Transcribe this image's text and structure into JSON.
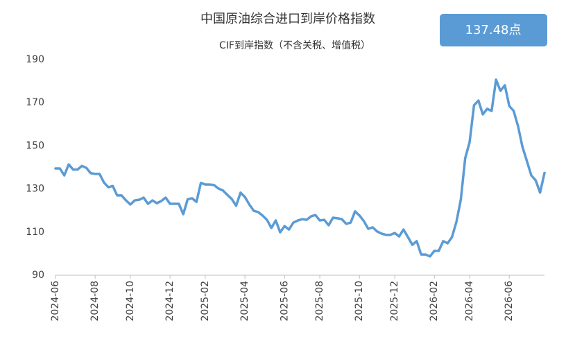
{
  "chart_data": {
    "type": "line",
    "title": "中国原油综合进口到岸价格指数",
    "subtitle": "CIF到岸指数（不含关税、增值税）",
    "annotation": "137.48点",
    "categories": [
      "2024-06",
      null,
      null,
      null,
      null,
      null,
      null,
      null,
      null,
      "2024-08",
      null,
      null,
      null,
      null,
      null,
      null,
      null,
      "2024-10",
      null,
      null,
      null,
      null,
      null,
      null,
      null,
      null,
      "2024-12",
      null,
      null,
      null,
      null,
      null,
      null,
      null,
      "2025-02",
      null,
      null,
      null,
      null,
      null,
      null,
      null,
      null,
      "2025-04",
      null,
      null,
      null,
      null,
      null,
      null,
      null,
      null,
      "2025-06",
      null,
      null,
      null,
      null,
      null,
      null,
      null,
      "2025-08",
      null,
      null,
      null,
      null,
      null,
      null,
      null,
      null,
      "2025-10",
      null,
      null,
      null,
      null,
      null,
      null,
      null,
      "2025-12",
      null,
      null,
      null,
      null,
      null,
      null,
      null,
      null,
      "2026-02",
      null,
      null,
      null,
      null,
      null,
      null,
      null,
      "2026-04",
      null,
      null,
      null,
      null,
      null,
      null,
      null,
      null,
      "2026-06",
      null,
      null,
      null,
      null,
      null,
      null,
      null,
      null
    ],
    "series": [
      {
        "color": "#5b9bd5",
        "values": [
          139.5,
          139.5,
          136.3,
          141.4,
          139,
          139,
          140.7,
          139.8,
          137.3,
          137,
          137,
          133,
          130.8,
          131.4,
          127,
          127,
          124.7,
          122.8,
          124.7,
          125,
          126,
          123.1,
          124.7,
          123.4,
          124.4,
          126,
          123.1,
          123.1,
          123.1,
          118.3,
          125.2,
          125.7,
          124,
          132.8,
          132.1,
          132.1,
          131.8,
          130.2,
          129.3,
          127.3,
          125.4,
          122.2,
          128.3,
          126.3,
          122.8,
          119.9,
          119.3,
          117.7,
          115.7,
          111.9,
          115.4,
          109.9,
          112.8,
          111.2,
          114.4,
          115.4,
          116,
          115.7,
          117.3,
          117.9,
          115.4,
          115.7,
          113.2,
          116.7,
          116.4,
          116,
          113.8,
          114.4,
          119.6,
          117.7,
          115.1,
          111.5,
          112.2,
          110.3,
          109.3,
          108.7,
          108.7,
          109.6,
          108,
          111.2,
          107.7,
          104.1,
          105.8,
          99.6,
          99.6,
          98.7,
          101.3,
          101.3,
          105.8,
          104.8,
          107.7,
          114.7,
          125,
          144.3,
          151.7,
          168.8,
          171,
          164.6,
          167.2,
          166.2,
          180.7,
          175.5,
          178.1,
          168.5,
          166.2,
          159.1,
          149.5,
          143,
          136.3,
          134,
          128.3,
          137.48
        ]
      }
    ],
    "ylim": [
      90,
      190
    ],
    "yticks": [
      90,
      110,
      130,
      150,
      170,
      190
    ],
    "grid": false
  }
}
